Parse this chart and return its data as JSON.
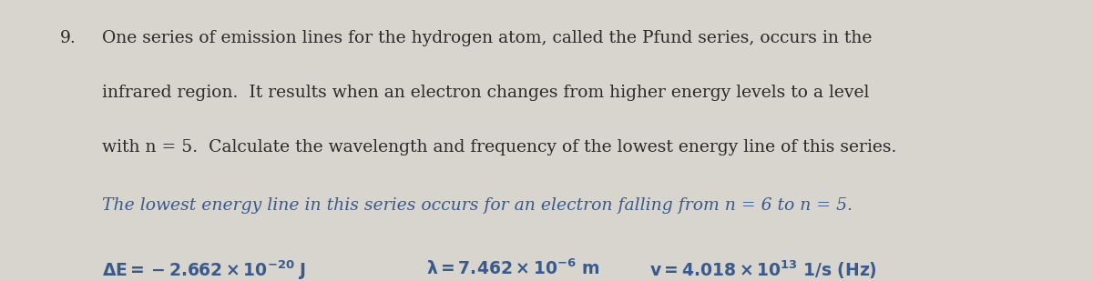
{
  "bg_color": "#d8d4ce",
  "question_number": "9.",
  "question_text_line1": "One series of emission lines for the hydrogen atom, called the Pfund series, occurs in the",
  "question_text_line2": "infrared region.  It results when an electron changes from higher energy levels to a level",
  "question_text_line3": "with n = 5.  Calculate the wavelength and frequency of the lowest energy line of this series.",
  "answer_line1": "The lowest energy line in this series occurs for an electron falling from n = 6 to n = 5.",
  "answer_line2_part1": "ΔE = −2.662x10⁻²⁰ J",
  "answer_line2_part2": "λ = 7.462x10⁻⁶ m",
  "answer_line2_part3": "v = 4.018x10¹³ 1/s (Hz)",
  "text_color_black": "#2b2b2b",
  "text_color_blue": "#3a5a8c",
  "fontsize_question": 13.5,
  "fontsize_answer": 13.5
}
